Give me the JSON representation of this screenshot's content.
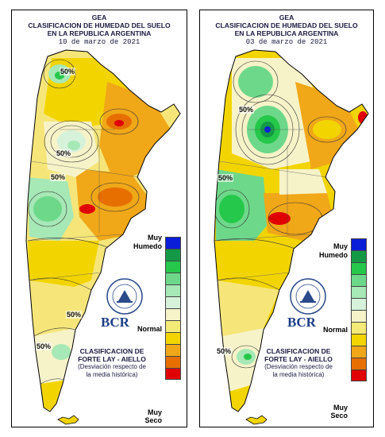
{
  "header": {
    "org": "GEA",
    "line1": "CLASIFICACION DE HUMEDAD DEL SUELO",
    "line2": "EN LA REPUBLICA ARGENTINA"
  },
  "maps": [
    {
      "date": "10 de marzo de 2021",
      "isolines": [
        "50%",
        "50%",
        "50%",
        "50%",
        "50%"
      ]
    },
    {
      "date": "03 de marzo de 2021",
      "isolines": [
        "50%",
        "50%",
        "50%"
      ]
    }
  ],
  "legend": {
    "top_label_1": "Muy",
    "top_label_2": "Humedo",
    "mid_label": "Normal",
    "bottom_label_1": "Muy",
    "bottom_label_2": "Seco",
    "colors": [
      "#0a1ed8",
      "#149a46",
      "#25c84a",
      "#6ed88a",
      "#a6e8b6",
      "#d6f2da",
      "#f7f3c9",
      "#f4ea77",
      "#f2d500",
      "#f0a718",
      "#e66f00",
      "#e00000"
    ]
  },
  "logo": {
    "text": "BCR",
    "seal_text": "BOLSA DE COMERCIO DE ROSARIO"
  },
  "caption": {
    "line1": "CLASIFICACION DE",
    "line2": "FORTE LAY - AIELLO",
    "line3": "(Desviación respecto de",
    "line4": "la media histórica)"
  },
  "colors": {
    "title": "#1a1a40",
    "brand": "#1d3f86"
  }
}
